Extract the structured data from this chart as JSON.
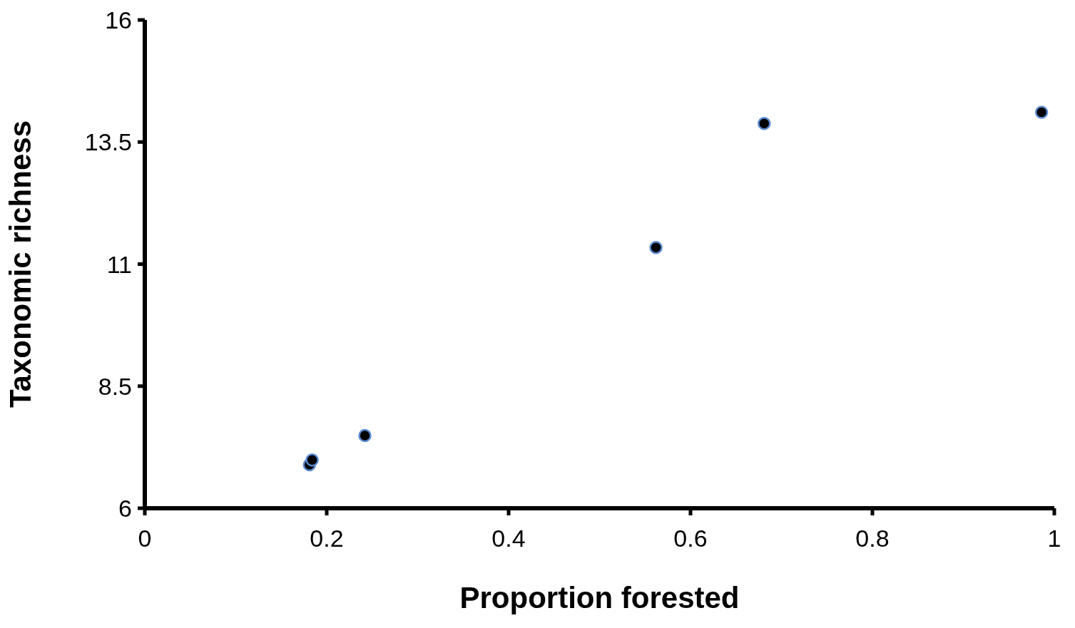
{
  "chart_data": {
    "type": "scatter",
    "xlabel": "Proportion forested",
    "ylabel": "Taxonomic richness",
    "x": [
      0.181,
      0.184,
      0.242,
      0.562,
      0.681,
      0.986
    ],
    "series": [
      {
        "color": "#000000",
        "values": [
          6.89,
          6.99,
          7.49,
          11.34,
          13.88,
          14.11
        ]
      }
    ],
    "xlim": [
      0,
      1
    ],
    "xticks": [
      0,
      0.2,
      0.4,
      0.6,
      0.8,
      1
    ],
    "ylim": [
      6,
      16
    ],
    "yticks": [
      6,
      8.5,
      11,
      13.5,
      16
    ],
    "marker": "circle"
  }
}
